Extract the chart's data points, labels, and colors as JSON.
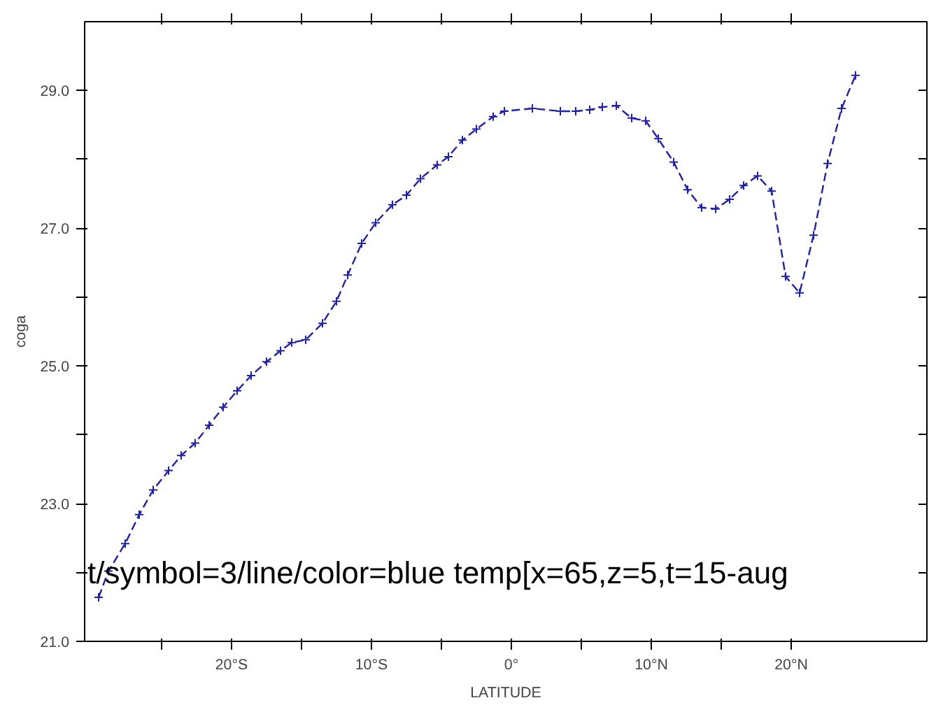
{
  "chart_data": {
    "type": "line",
    "xlabel": "LATITUDE",
    "ylabel": "coga",
    "annotations": [
      "t/symbol=3/line/color=blue temp[x=65,z=5,t=15-aug"
    ],
    "x": [
      -29.5,
      -28.8,
      -27.6,
      -26.6,
      -25.6,
      -24.5,
      -23.6,
      -22.6,
      -21.6,
      -20.6,
      -19.6,
      -18.6,
      -17.5,
      -16.5,
      -15.7,
      -14.7,
      -13.5,
      -12.5,
      -11.7,
      -10.7,
      -9.7,
      -8.5,
      -7.5,
      -6.5,
      -5.3,
      -4.5,
      -3.5,
      -2.5,
      -1.3,
      -0.5,
      1.5,
      3.5,
      4.6,
      5.6,
      6.5,
      7.5,
      8.6,
      9.6,
      10.5,
      11.6,
      12.6,
      13.6,
      14.6,
      15.6,
      16.6,
      17.6,
      18.6,
      19.6,
      20.6,
      21.6,
      22.6,
      23.6,
      24.6
    ],
    "series": [
      {
        "color": "#2020b0",
        "values": [
          21.64,
          22.02,
          22.42,
          22.84,
          23.2,
          23.48,
          23.7,
          23.88,
          24.14,
          24.4,
          24.64,
          24.86,
          25.06,
          25.22,
          25.34,
          25.38,
          25.62,
          25.94,
          26.32,
          26.78,
          27.08,
          27.34,
          27.48,
          27.72,
          27.92,
          28.04,
          28.28,
          28.44,
          28.62,
          28.7,
          28.74,
          28.7,
          28.7,
          28.72,
          28.76,
          28.78,
          28.6,
          28.56,
          28.3,
          27.96,
          27.56,
          27.3,
          27.28,
          27.42,
          27.62,
          27.76,
          27.54,
          26.3,
          26.06,
          26.9,
          27.94,
          28.74,
          29.22
        ]
      }
    ],
    "xlim": [
      -30.5,
      29.7
    ],
    "ylim": [
      21,
      30
    ],
    "xticks": [
      {
        "value": -25,
        "label": null
      },
      {
        "value": -20,
        "label": "20°S"
      },
      {
        "value": -15,
        "label": null
      },
      {
        "value": -10,
        "label": "10°S"
      },
      {
        "value": -5,
        "label": null
      },
      {
        "value": 0,
        "label": "0°"
      },
      {
        "value": 5,
        "label": null
      },
      {
        "value": 10,
        "label": "10°N"
      },
      {
        "value": 15,
        "label": null
      },
      {
        "value": 20,
        "label": "20°N"
      }
    ],
    "yticks": [
      {
        "value": 21,
        "label": "21.0"
      },
      {
        "value": 22,
        "label": null
      },
      {
        "value": 23,
        "label": "23.0"
      },
      {
        "value": 24,
        "label": null
      },
      {
        "value": 25,
        "label": "25.0"
      },
      {
        "value": 26,
        "label": null
      },
      {
        "value": 27,
        "label": "27.0"
      },
      {
        "value": 28,
        "label": null
      },
      {
        "value": 29,
        "label": "29.0"
      }
    ],
    "grid": false,
    "marker": "cross",
    "line_style": "dashed"
  }
}
